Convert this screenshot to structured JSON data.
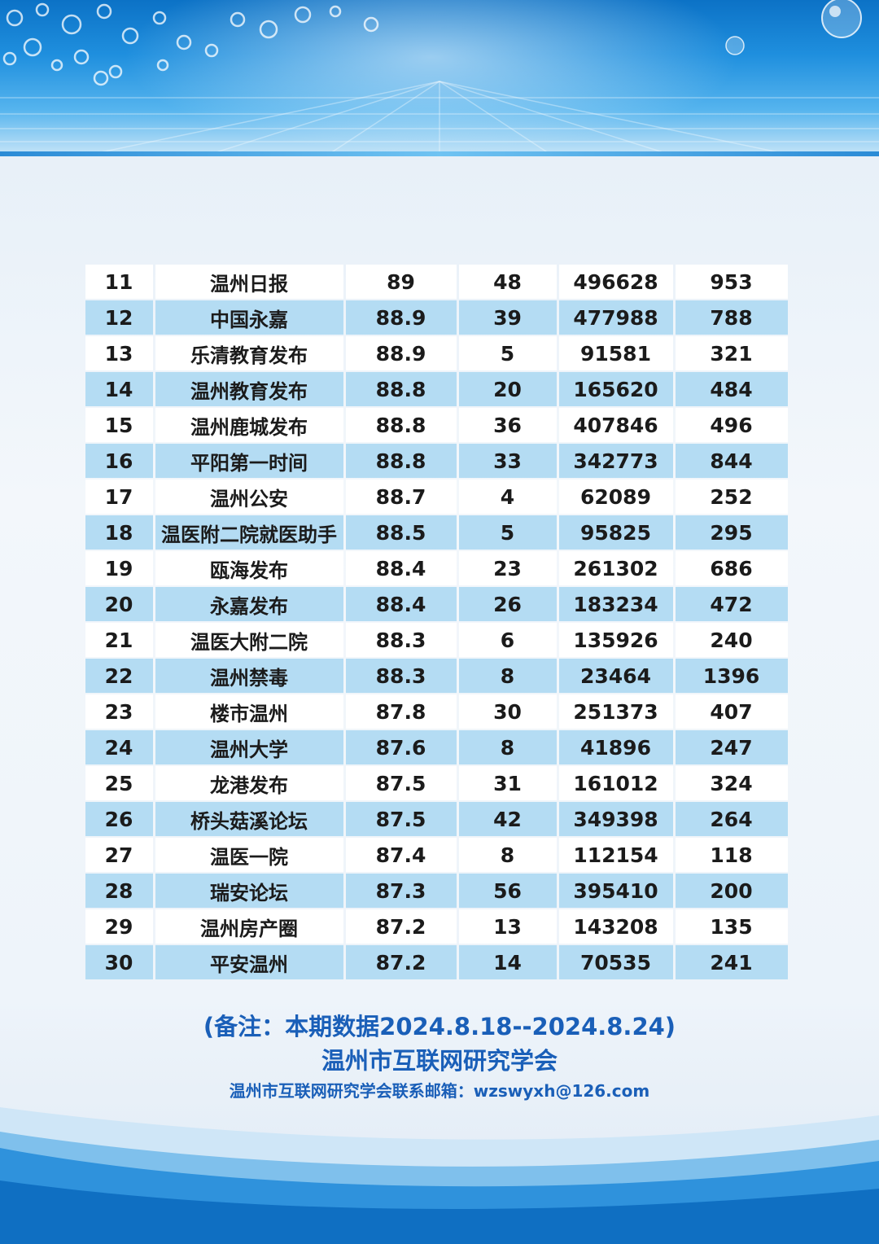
{
  "table": {
    "rows": [
      [
        "11",
        "温州日报",
        "89",
        "48",
        "496628",
        "953"
      ],
      [
        "12",
        "中国永嘉",
        "88.9",
        "39",
        "477988",
        "788"
      ],
      [
        "13",
        "乐清教育发布",
        "88.9",
        "5",
        "91581",
        "321"
      ],
      [
        "14",
        "温州教育发布",
        "88.8",
        "20",
        "165620",
        "484"
      ],
      [
        "15",
        "温州鹿城发布",
        "88.8",
        "36",
        "407846",
        "496"
      ],
      [
        "16",
        "平阳第一时间",
        "88.8",
        "33",
        "342773",
        "844"
      ],
      [
        "17",
        "温州公安",
        "88.7",
        "4",
        "62089",
        "252"
      ],
      [
        "18",
        "温医附二院就医助手",
        "88.5",
        "5",
        "95825",
        "295"
      ],
      [
        "19",
        "瓯海发布",
        "88.4",
        "23",
        "261302",
        "686"
      ],
      [
        "20",
        "永嘉发布",
        "88.4",
        "26",
        "183234",
        "472"
      ],
      [
        "21",
        "温医大附二院",
        "88.3",
        "6",
        "135926",
        "240"
      ],
      [
        "22",
        "温州禁毒",
        "88.3",
        "8",
        "23464",
        "1396"
      ],
      [
        "23",
        "楼市温州",
        "87.8",
        "30",
        "251373",
        "407"
      ],
      [
        "24",
        "温州大学",
        "87.6",
        "8",
        "41896",
        "247"
      ],
      [
        "25",
        "龙港发布",
        "87.5",
        "31",
        "161012",
        "324"
      ],
      [
        "26",
        "桥头菇溪论坛",
        "87.5",
        "42",
        "349398",
        "264"
      ],
      [
        "27",
        "温医一院",
        "87.4",
        "8",
        "112154",
        "118"
      ],
      [
        "28",
        "瑞安论坛",
        "87.3",
        "56",
        "395410",
        "200"
      ],
      [
        "29",
        "温州房产圈",
        "87.2",
        "13",
        "143208",
        "135"
      ],
      [
        "30",
        "平安温州",
        "87.2",
        "14",
        "70535",
        "241"
      ]
    ]
  },
  "notes": {
    "period": "(备注：本期数据2024.8.18--2024.8.24)",
    "organization": "温州市互联网研究学会",
    "contact": "温州市互联网研究学会联系邮箱：wzswyxh@126.com"
  },
  "colors": {
    "header_blue": "#1f8fde",
    "row_stripe": "#b4dcf3",
    "note_text": "#1a5fb8"
  }
}
